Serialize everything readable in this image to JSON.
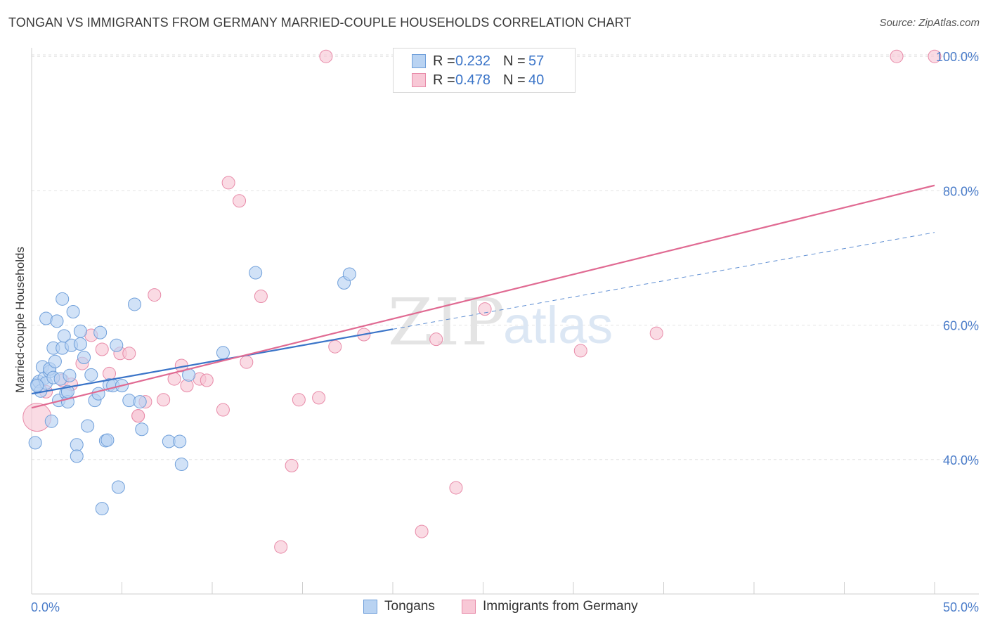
{
  "header": {
    "title": "TONGAN VS IMMIGRANTS FROM GERMANY MARRIED-COUPLE HOUSEHOLDS CORRELATION CHART",
    "source": "Source: ZipAtlas.com"
  },
  "watermark": {
    "zip": "ZIP",
    "atlas": "atlas"
  },
  "legend": {
    "r_label": "R =",
    "n_label": "N =",
    "items": [
      {
        "name": "Tongans",
        "r": "0.232",
        "n": "57",
        "fill": "#b9d3f2",
        "stroke": "#6f9fda"
      },
      {
        "name": "Immigrants from Germany",
        "r": "0.478",
        "n": "40",
        "fill": "#f8c8d6",
        "stroke": "#e88aa8"
      }
    ]
  },
  "chart_data": {
    "type": "scatter",
    "title": "TONGAN VS IMMIGRANTS FROM GERMANY MARRIED-COUPLE HOUSEHOLDS CORRELATION CHART",
    "xlabel": "",
    "ylabel": "Married-couple Households",
    "xlim": [
      0,
      50
    ],
    "ylim": [
      20,
      102
    ],
    "x_tick_labels": [
      "0.0%",
      "50.0%"
    ],
    "y_ticks": [
      40,
      60,
      80,
      100
    ],
    "y_tick_labels": [
      "40.0%",
      "60.0%",
      "80.0%",
      "100.0%"
    ],
    "grid": true,
    "colors": {
      "tongans": "#3a74c8",
      "germany": "#e06a92",
      "axis_text": "#4a7cc9"
    },
    "series": [
      {
        "name": "Tongans",
        "color": "#6f9fda",
        "fill": "#b9d3f2",
        "trend": {
          "x0": 0,
          "y0": 49.8,
          "x1": 20,
          "y1": 59.4,
          "dash_to_x": 50,
          "dash_to_y": 73.8
        },
        "points": [
          [
            0.2,
            42.5
          ],
          [
            0.3,
            51.2
          ],
          [
            0.4,
            51.6
          ],
          [
            0.5,
            50.2
          ],
          [
            0.6,
            53.8
          ],
          [
            0.7,
            52.1
          ],
          [
            0.8,
            51.4
          ],
          [
            0.8,
            61.0
          ],
          [
            1.0,
            53.1
          ],
          [
            1.0,
            53.5
          ],
          [
            1.1,
            45.7
          ],
          [
            1.2,
            52.2
          ],
          [
            1.2,
            56.6
          ],
          [
            1.3,
            54.6
          ],
          [
            1.4,
            60.6
          ],
          [
            1.5,
            48.8
          ],
          [
            1.6,
            52.0
          ],
          [
            1.7,
            56.6
          ],
          [
            1.7,
            63.9
          ],
          [
            1.8,
            58.4
          ],
          [
            1.9,
            49.9
          ],
          [
            2.0,
            48.6
          ],
          [
            2.0,
            50.1
          ],
          [
            2.1,
            52.5
          ],
          [
            2.2,
            57.0
          ],
          [
            2.3,
            62.0
          ],
          [
            2.5,
            42.2
          ],
          [
            2.5,
            40.5
          ],
          [
            2.7,
            59.1
          ],
          [
            2.7,
            57.2
          ],
          [
            2.9,
            55.2
          ],
          [
            3.1,
            45.0
          ],
          [
            3.3,
            52.6
          ],
          [
            3.5,
            48.8
          ],
          [
            3.7,
            49.8
          ],
          [
            3.8,
            58.9
          ],
          [
            3.9,
            32.7
          ],
          [
            4.1,
            42.8
          ],
          [
            4.2,
            42.9
          ],
          [
            4.3,
            51.1
          ],
          [
            4.5,
            51.0
          ],
          [
            4.7,
            57.0
          ],
          [
            4.8,
            35.9
          ],
          [
            5.0,
            51.0
          ],
          [
            5.4,
            48.8
          ],
          [
            5.7,
            63.1
          ],
          [
            6.0,
            48.6
          ],
          [
            6.1,
            44.5
          ],
          [
            7.6,
            42.7
          ],
          [
            8.2,
            42.7
          ],
          [
            8.3,
            39.3
          ],
          [
            8.7,
            52.6
          ],
          [
            10.6,
            55.9
          ],
          [
            12.4,
            67.8
          ],
          [
            17.3,
            66.3
          ],
          [
            17.6,
            67.6
          ],
          [
            0.3,
            51.0
          ]
        ]
      },
      {
        "name": "Immigrants from Germany",
        "color": "#e88aa8",
        "fill": "#f8c8d6",
        "trend": {
          "x0": 0,
          "y0": 47.7,
          "x1": 50,
          "y1": 80.8
        },
        "points": [
          [
            0.3,
            46.3
          ],
          [
            0.8,
            50.1
          ],
          [
            1.7,
            51.8
          ],
          [
            2.2,
            51.2
          ],
          [
            2.8,
            54.3
          ],
          [
            3.3,
            58.5
          ],
          [
            3.9,
            56.4
          ],
          [
            4.3,
            52.8
          ],
          [
            4.9,
            55.8
          ],
          [
            5.4,
            55.8
          ],
          [
            5.9,
            46.5
          ],
          [
            6.3,
            48.6
          ],
          [
            6.8,
            64.5
          ],
          [
            7.3,
            48.9
          ],
          [
            7.9,
            52.0
          ],
          [
            8.3,
            54.0
          ],
          [
            8.6,
            51.0
          ],
          [
            9.3,
            52.0
          ],
          [
            9.7,
            51.8
          ],
          [
            10.6,
            47.4
          ],
          [
            10.9,
            81.2
          ],
          [
            11.5,
            78.5
          ],
          [
            11.9,
            54.5
          ],
          [
            12.7,
            64.3
          ],
          [
            13.8,
            27.0
          ],
          [
            14.4,
            39.1
          ],
          [
            14.8,
            48.9
          ],
          [
            15.9,
            49.2
          ],
          [
            16.3,
            100.0
          ],
          [
            16.8,
            56.8
          ],
          [
            18.4,
            58.6
          ],
          [
            21.6,
            29.3
          ],
          [
            22.4,
            57.9
          ],
          [
            23.5,
            35.8
          ],
          [
            25.1,
            62.4
          ],
          [
            30.4,
            56.2
          ],
          [
            34.6,
            58.8
          ],
          [
            47.9,
            100.0
          ],
          [
            50.0,
            100.0
          ],
          [
            5.9,
            46.5
          ]
        ]
      }
    ]
  }
}
